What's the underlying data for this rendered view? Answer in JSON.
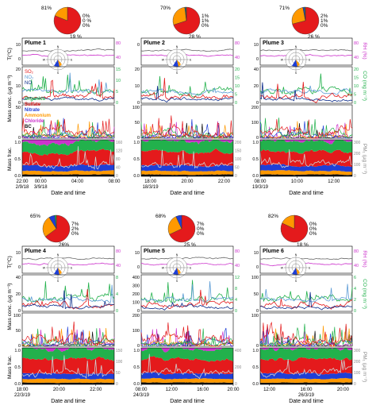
{
  "figure": {
    "left_axis": {
      "t": "T(°C)",
      "mass_conc": "Mass conc. (µg m⁻³)",
      "mass_frac": "Mass frac."
    },
    "right_axis": {
      "rh": "RH (%)",
      "co": "CO (mg m⁻³)",
      "pm": "PM₁ (µg m⁻³)"
    },
    "xlabel": "Date and time",
    "gas_legend": [
      "SO₂",
      "NO₂",
      "NO"
    ],
    "species_legend": [
      "Organics",
      "Sulfate",
      "Nitrate",
      "Ammonium",
      "Chloride",
      "BC"
    ],
    "colors": {
      "Organics": "#22b14c",
      "Sulfate": "#e41a1c",
      "Nitrate": "#1f3fd6",
      "Ammonium": "#ff9900",
      "Chloride": "#cc33cc",
      "BC": "#111111",
      "SO2": "#e41a1c",
      "NO2": "#5b9bd5",
      "NO": "#0a2a8a",
      "CO": "#22b14c",
      "T": "#666666",
      "RH": "#cc33cc",
      "PM": "#999999"
    },
    "compass": {
      "n": "N",
      "e": "E",
      "s": "S",
      "w": "W"
    }
  },
  "chart_data": [
    {
      "type": "area",
      "title": "Plume 1",
      "pie": {
        "values": [
          81,
          19,
          0,
          0,
          0
        ],
        "labels": [
          "81%",
          "19 %",
          "0%",
          "0 %",
          "0%"
        ]
      },
      "t_ticks": [
        "10",
        "0"
      ],
      "rh_ticks": [
        "80",
        "40"
      ],
      "conc_ticks": [
        "20",
        "10",
        "0"
      ],
      "co_ticks": [
        "15",
        "10",
        "5",
        "0"
      ],
      "spec_ticks": [
        "50",
        "0"
      ],
      "frac_ticks": [
        "1.0",
        "0.5",
        "0.0"
      ],
      "pm_ticks": [
        "160",
        "120",
        "80",
        "40",
        "0"
      ],
      "x_ticks": [
        {
          "t": "22:00\n2/9/18",
          "f": 0.0
        },
        {
          "t": "00:00\n3/9/18",
          "f": 0.2
        },
        {
          "t": "04:00",
          "f": 0.6
        },
        {
          "t": "08:00",
          "f": 1.0
        }
      ]
    },
    {
      "type": "area",
      "title": "Plume 2",
      "pie": {
        "values": [
          70,
          28,
          1,
          1,
          0
        ],
        "labels": [
          "70%",
          "28 %",
          "1%",
          "1%",
          "0%"
        ]
      },
      "t_ticks": [
        "0"
      ],
      "rh_ticks": [
        "80",
        "40"
      ],
      "conc_ticks": [
        "20",
        "10",
        "0"
      ],
      "co_ticks": [
        "20",
        "15",
        "10",
        "5",
        "0"
      ],
      "spec_ticks": [
        "100",
        "50",
        "0"
      ],
      "frac_ticks": [
        "1.0",
        "0.5",
        "0.0"
      ],
      "pm_ticks": [
        "200",
        "150",
        "100",
        "50",
        "0"
      ],
      "x_ticks": [
        {
          "t": "18:00\n18/3/19",
          "f": 0.1
        },
        {
          "t": "20:00",
          "f": 0.5
        },
        {
          "t": "22:00",
          "f": 0.9
        }
      ]
    },
    {
      "type": "area",
      "title": "Plume 3",
      "pie": {
        "values": [
          71,
          26,
          2,
          1,
          0
        ],
        "labels": [
          "71%",
          "26 %",
          "2%",
          "1%",
          "0%"
        ]
      },
      "t_ticks": [
        "10",
        "0"
      ],
      "rh_ticks": [
        "80",
        "40"
      ],
      "conc_ticks": [
        "40",
        "20",
        "0"
      ],
      "co_ticks": [
        "20",
        "15",
        "10",
        "5",
        "0"
      ],
      "spec_ticks": [
        "200",
        "100",
        "0"
      ],
      "frac_ticks": [
        "1.0",
        "0.5",
        "0.0"
      ],
      "pm_ticks": [
        "300",
        "200",
        "100",
        "0"
      ],
      "x_ticks": [
        {
          "t": "08:00\n19/3/19",
          "f": 0.0
        },
        {
          "t": "10:00",
          "f": 0.4
        },
        {
          "t": "12:00",
          "f": 0.8
        }
      ]
    },
    {
      "type": "area",
      "title": "Plume 4",
      "pie": {
        "values": [
          65,
          26,
          7,
          2,
          0
        ],
        "labels": [
          "65%",
          "26%",
          "7%",
          "2%",
          "0%"
        ]
      },
      "t_ticks": [
        "10",
        "0"
      ],
      "rh_ticks": [
        "80",
        "40"
      ],
      "conc_ticks": [
        "40",
        "20",
        "0"
      ],
      "co_ticks": [
        "8",
        "4",
        "0"
      ],
      "spec_ticks": [
        "100",
        "50",
        "0"
      ],
      "frac_ticks": [
        "1.0",
        "0.5",
        "0.0"
      ],
      "pm_ticks": [
        "150",
        "100",
        "50",
        "0"
      ],
      "x_ticks": [
        {
          "t": "18:00\n22/3/19",
          "f": 0.0
        },
        {
          "t": "20:00",
          "f": 0.4
        },
        {
          "t": "22:00",
          "f": 0.8
        }
      ]
    },
    {
      "type": "area",
      "title": "Plume 5",
      "pie": {
        "values": [
          68,
          25,
          7,
          0,
          0
        ],
        "labels": [
          "68%",
          "25 %",
          "7%",
          "0%",
          "0%"
        ]
      },
      "t_ticks": [
        "10",
        "0"
      ],
      "rh_ticks": [
        "80",
        "40"
      ],
      "conc_ticks": [
        "400",
        "300",
        "200",
        "100",
        "0"
      ],
      "co_ticks": [
        "12",
        "8",
        "4",
        "0"
      ],
      "spec_ticks": [
        "200",
        "100",
        "0"
      ],
      "frac_ticks": [
        "1.0",
        "0.5",
        "0.0"
      ],
      "pm_ticks": [
        "400",
        "200",
        "0"
      ],
      "x_ticks": [
        {
          "t": "08:00\n24/3/19",
          "f": 0.0
        },
        {
          "t": "12:00",
          "f": 0.33
        },
        {
          "t": "16:00",
          "f": 0.67
        },
        {
          "t": "20:00",
          "f": 1.0
        }
      ]
    },
    {
      "type": "area",
      "title": "Plume 6",
      "pie": {
        "values": [
          82,
          18,
          0,
          0,
          0
        ],
        "labels": [
          "82%",
          "18 %",
          "0%",
          "0%",
          "0%"
        ]
      },
      "t_ticks": [
        "10",
        "0"
      ],
      "rh_ticks": [
        "80",
        "40"
      ],
      "conc_ticks": [
        "100",
        "50",
        "0"
      ],
      "co_ticks": [
        "6",
        "4",
        "2",
        "0"
      ],
      "spec_ticks": [
        "100",
        "0"
      ],
      "frac_ticks": [
        "1.0",
        "0.5",
        "0.0"
      ],
      "pm_ticks": [
        "300",
        "200",
        "100",
        "0"
      ],
      "x_ticks": [
        {
          "t": "12:00",
          "f": 0.1
        },
        {
          "t": "16:00\n26/3/19",
          "f": 0.5
        },
        {
          "t": "20:00",
          "f": 0.9
        }
      ]
    }
  ]
}
